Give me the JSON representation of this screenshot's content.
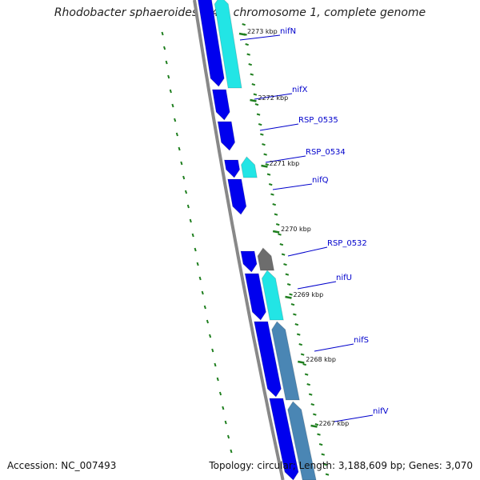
{
  "title": "Rhodobacter sphaeroides 2.4.1 chromosome 1, complete genome",
  "footer": {
    "accession": "Accession: NC_007493",
    "summary": "Topology: circular; Length: 3,188,609 bp; Genes: 3,070"
  },
  "colors": {
    "forward_gene": "#0000ee",
    "reverse_gene": "#22e5e5",
    "reverse_gene_dark": "#4a86b4",
    "other_feature": "#6d6d6d",
    "backbone": "#888888",
    "tick": "#1f7f1f",
    "gene_label": "#0000cc"
  },
  "ticks": [
    {
      "label": "2273 kbp"
    },
    {
      "label": "2272 kbp"
    },
    {
      "label": "2271 kbp"
    },
    {
      "label": "2270 kbp"
    },
    {
      "label": "2269 kbp"
    },
    {
      "label": "2268 kbp"
    },
    {
      "label": "2267 kbp"
    }
  ],
  "genes": [
    {
      "label": "nifN"
    },
    {
      "label": "nifX"
    },
    {
      "label": "RSP_0535"
    },
    {
      "label": "RSP_0534"
    },
    {
      "label": "nifQ"
    },
    {
      "label": "RSP_0532"
    },
    {
      "label": "nifU"
    },
    {
      "label": "nifS"
    },
    {
      "label": "nifV"
    }
  ]
}
